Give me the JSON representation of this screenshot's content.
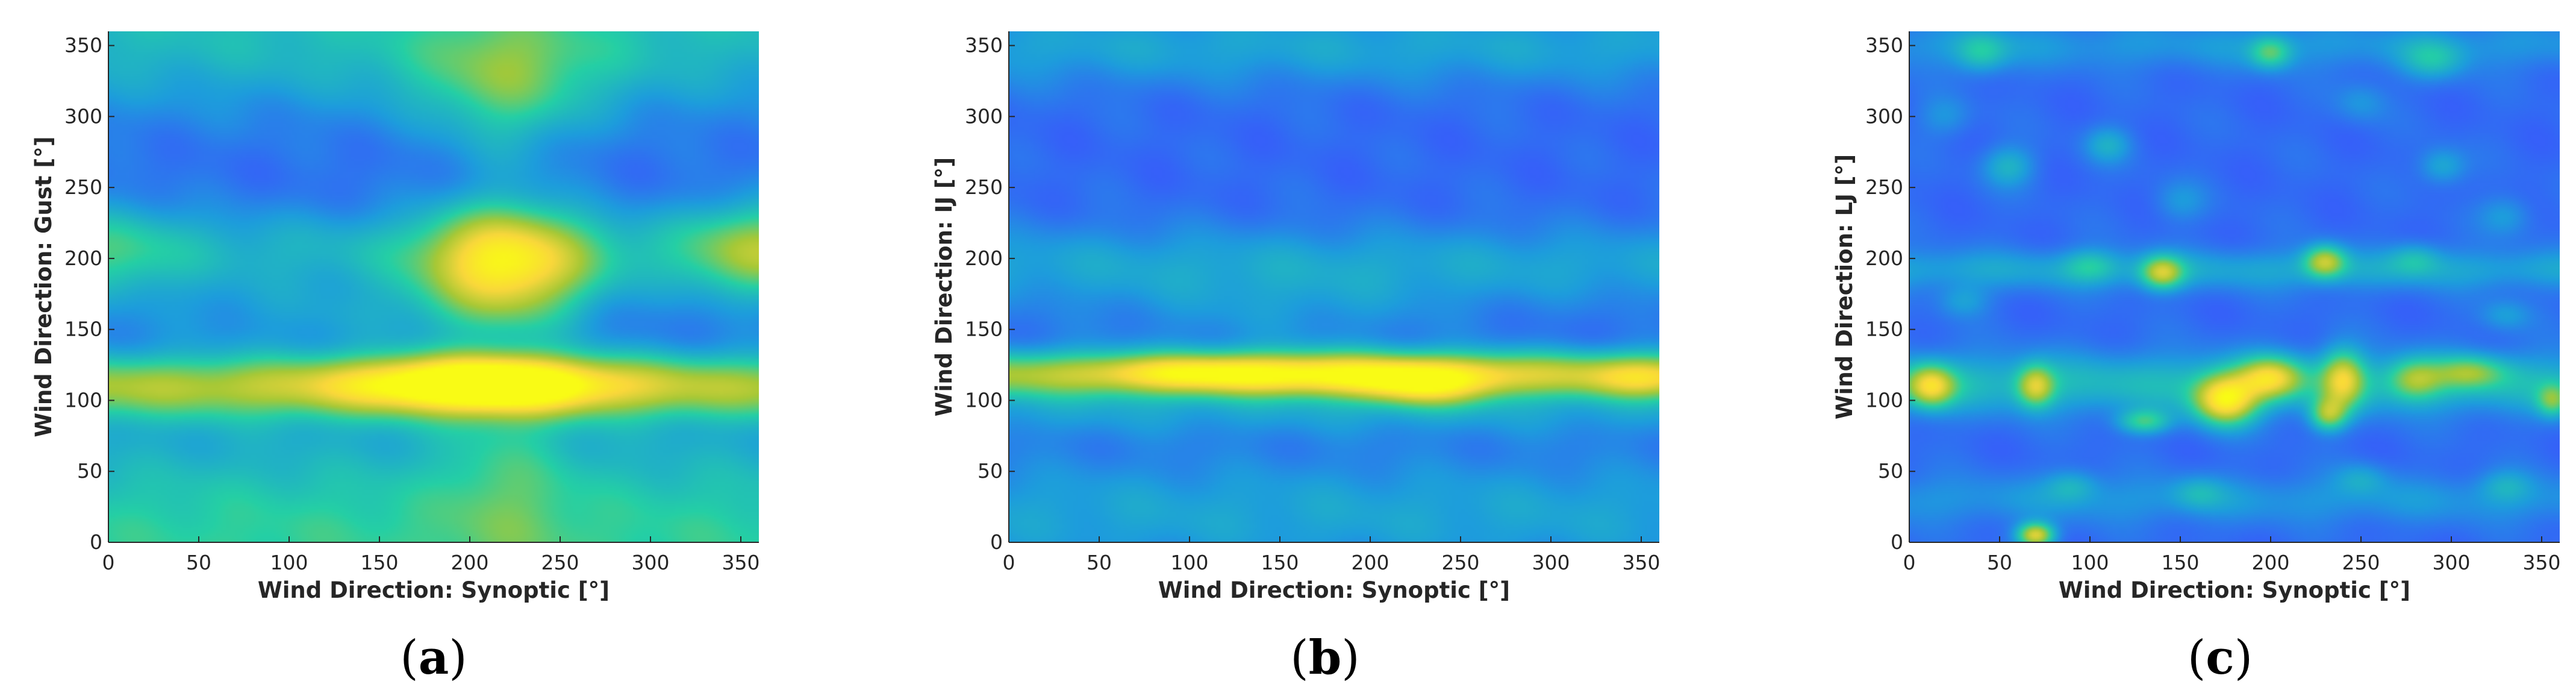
{
  "chart_data": [
    {
      "type": "heatmap",
      "xlabel": "Wind Direction: Synoptic [°]",
      "ylabel": "Wind Direction: Gust [°]",
      "caption_open": "(",
      "caption_letter": "a",
      "caption_close": ")",
      "xlim": [
        0,
        360
      ],
      "ylim": [
        0,
        360
      ],
      "xticks": [
        0,
        50,
        100,
        150,
        200,
        250,
        300,
        350
      ],
      "yticks": [
        0,
        50,
        100,
        150,
        200,
        250,
        300,
        350
      ],
      "colormap": [
        "#3e26a8",
        "#3b53ff",
        "#1d9ddc",
        "#24cfa5",
        "#a6c836",
        "#f9d73b",
        "#f9fb15"
      ],
      "grid": false,
      "blobs": [
        {
          "x": 180,
          "y": 0,
          "sx": 600,
          "sy": 60,
          "v": 0.3
        },
        {
          "x": 180,
          "y": 360,
          "sx": 600,
          "sy": 40,
          "v": 0.22
        },
        {
          "x": 220,
          "y": 330,
          "sx": 40,
          "sy": 30,
          "v": 0.18
        },
        {
          "x": 180,
          "y": 110,
          "sx": 600,
          "sy": 16,
          "v": 0.42
        },
        {
          "x": 205,
          "y": 112,
          "sx": 50,
          "sy": 13,
          "v": 0.58
        },
        {
          "x": 180,
          "y": 205,
          "sx": 600,
          "sy": 22,
          "v": 0.18
        },
        {
          "x": 220,
          "y": 195,
          "sx": 32,
          "sy": 28,
          "v": 0.58
        },
        {
          "x": 360,
          "y": 205,
          "sx": 30,
          "sy": 25,
          "v": 0.3
        },
        {
          "x": 0,
          "y": 205,
          "sx": 30,
          "sy": 25,
          "v": 0.15
        },
        {
          "x": 130,
          "y": 160,
          "sx": 80,
          "sy": 18,
          "v": 0.1
        },
        {
          "x": 220,
          "y": 60,
          "sx": 25,
          "sy": 60,
          "v": 0.12
        },
        {
          "x": 220,
          "y": 300,
          "sx": 25,
          "sy": 40,
          "v": 0.1
        }
      ]
    },
    {
      "type": "heatmap",
      "xlabel": "Wind Direction: Synoptic [°]",
      "ylabel": "Wind Direction: IJ [°]",
      "caption_open": "(",
      "caption_letter": "b",
      "caption_close": ")",
      "xlim": [
        0,
        360
      ],
      "ylim": [
        0,
        360
      ],
      "xticks": [
        0,
        50,
        100,
        150,
        200,
        250,
        300,
        350
      ],
      "yticks": [
        0,
        50,
        100,
        150,
        200,
        250,
        300,
        350
      ],
      "colormap": [
        "#3e26a8",
        "#3b53ff",
        "#1d9ddc",
        "#24cfa5",
        "#a6c836",
        "#f9d73b",
        "#f9fb15"
      ],
      "grid": false,
      "blobs": [
        {
          "x": 180,
          "y": 118,
          "sx": 600,
          "sy": 12,
          "v": 0.45
        },
        {
          "x": 180,
          "y": 118,
          "sx": 70,
          "sy": 10,
          "v": 0.32
        },
        {
          "x": 100,
          "y": 120,
          "sx": 35,
          "sy": 8,
          "v": 0.18
        },
        {
          "x": 230,
          "y": 108,
          "sx": 25,
          "sy": 10,
          "v": 0.3
        },
        {
          "x": 350,
          "y": 115,
          "sx": 20,
          "sy": 10,
          "v": 0.22
        },
        {
          "x": 180,
          "y": 90,
          "sx": 600,
          "sy": 12,
          "v": 0.1
        },
        {
          "x": 180,
          "y": 195,
          "sx": 600,
          "sy": 20,
          "v": 0.14
        },
        {
          "x": 180,
          "y": 20,
          "sx": 600,
          "sy": 30,
          "v": 0.14
        },
        {
          "x": 180,
          "y": 350,
          "sx": 600,
          "sy": 20,
          "v": 0.14
        },
        {
          "x": 150,
          "y": 160,
          "sx": 70,
          "sy": 20,
          "v": 0.08
        }
      ]
    },
    {
      "type": "heatmap",
      "xlabel": "Wind Direction: Synoptic [°]",
      "ylabel": "Wind Direction: LJ [°]",
      "caption_open": "(",
      "caption_letter": "c",
      "caption_close": ")",
      "xlim": [
        0,
        360
      ],
      "ylim": [
        0,
        360
      ],
      "xticks": [
        0,
        50,
        100,
        150,
        200,
        250,
        300,
        350
      ],
      "yticks": [
        0,
        50,
        100,
        150,
        200,
        250,
        300,
        350
      ],
      "colormap": [
        "#3e26a8",
        "#3b53ff",
        "#1d9ddc",
        "#24cfa5",
        "#a6c836",
        "#f9d73b",
        "#f9fb15"
      ],
      "grid": false,
      "blobs": [
        {
          "x": 180,
          "y": 112,
          "sx": 600,
          "sy": 15,
          "v": 0.2
        },
        {
          "x": 175,
          "y": 100,
          "sx": 12,
          "sy": 12,
          "v": 0.62
        },
        {
          "x": 200,
          "y": 116,
          "sx": 12,
          "sy": 10,
          "v": 0.45
        },
        {
          "x": 240,
          "y": 115,
          "sx": 8,
          "sy": 14,
          "v": 0.42
        },
        {
          "x": 232,
          "y": 90,
          "sx": 7,
          "sy": 8,
          "v": 0.38
        },
        {
          "x": 12,
          "y": 110,
          "sx": 9,
          "sy": 10,
          "v": 0.48
        },
        {
          "x": 70,
          "y": 110,
          "sx": 7,
          "sy": 10,
          "v": 0.4
        },
        {
          "x": 130,
          "y": 85,
          "sx": 10,
          "sy": 6,
          "v": 0.28
        },
        {
          "x": 280,
          "y": 115,
          "sx": 10,
          "sy": 10,
          "v": 0.28
        },
        {
          "x": 310,
          "y": 120,
          "sx": 14,
          "sy": 8,
          "v": 0.28
        },
        {
          "x": 356,
          "y": 100,
          "sx": 6,
          "sy": 8,
          "v": 0.28
        },
        {
          "x": 140,
          "y": 190,
          "sx": 8,
          "sy": 8,
          "v": 0.42
        },
        {
          "x": 230,
          "y": 198,
          "sx": 8,
          "sy": 8,
          "v": 0.42
        },
        {
          "x": 180,
          "y": 192,
          "sx": 600,
          "sy": 10,
          "v": 0.14
        },
        {
          "x": 70,
          "y": 5,
          "sx": 7,
          "sy": 6,
          "v": 0.55
        },
        {
          "x": 200,
          "y": 345,
          "sx": 8,
          "sy": 8,
          "v": 0.28
        },
        {
          "x": 40,
          "y": 345,
          "sx": 10,
          "sy": 10,
          "v": 0.2
        },
        {
          "x": 290,
          "y": 340,
          "sx": 12,
          "sy": 10,
          "v": 0.18
        },
        {
          "x": 55,
          "y": 265,
          "sx": 10,
          "sy": 10,
          "v": 0.18
        },
        {
          "x": 110,
          "y": 280,
          "sx": 9,
          "sy": 9,
          "v": 0.16
        },
        {
          "x": 295,
          "y": 265,
          "sx": 9,
          "sy": 9,
          "v": 0.16
        },
        {
          "x": 180,
          "y": 30,
          "sx": 600,
          "sy": 12,
          "v": 0.1
        },
        {
          "x": 180,
          "y": 350,
          "sx": 600,
          "sy": 12,
          "v": 0.1
        },
        {
          "x": 90,
          "y": 40,
          "sx": 10,
          "sy": 8,
          "v": 0.14
        },
        {
          "x": 160,
          "y": 35,
          "sx": 10,
          "sy": 8,
          "v": 0.12
        },
        {
          "x": 250,
          "y": 45,
          "sx": 10,
          "sy": 8,
          "v": 0.12
        },
        {
          "x": 330,
          "y": 40,
          "sx": 10,
          "sy": 8,
          "v": 0.12
        },
        {
          "x": 30,
          "y": 170,
          "sx": 10,
          "sy": 8,
          "v": 0.12
        },
        {
          "x": 100,
          "y": 195,
          "sx": 10,
          "sy": 8,
          "v": 0.15
        },
        {
          "x": 280,
          "y": 200,
          "sx": 10,
          "sy": 8,
          "v": 0.15
        },
        {
          "x": 330,
          "y": 160,
          "sx": 10,
          "sy": 8,
          "v": 0.12
        },
        {
          "x": 150,
          "y": 240,
          "sx": 10,
          "sy": 10,
          "v": 0.1
        },
        {
          "x": 330,
          "y": 230,
          "sx": 10,
          "sy": 10,
          "v": 0.12
        },
        {
          "x": 20,
          "y": 300,
          "sx": 10,
          "sy": 10,
          "v": 0.1
        },
        {
          "x": 250,
          "y": 310,
          "sx": 10,
          "sy": 10,
          "v": 0.1
        }
      ]
    }
  ]
}
